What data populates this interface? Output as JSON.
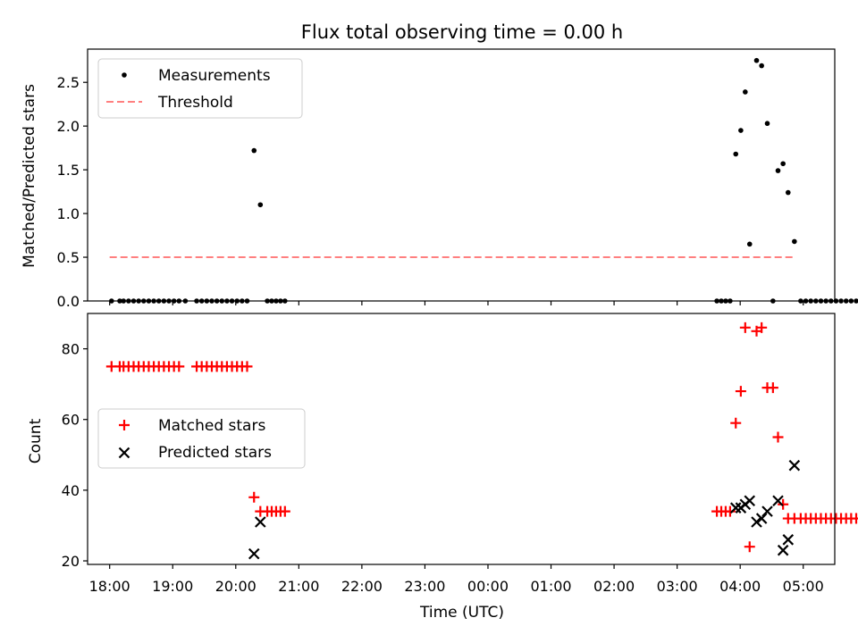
{
  "chart_data": [
    {
      "type": "scatter",
      "title": "Flux total observing time = 0.00 h",
      "xlabel": "",
      "ylabel": "Matched/Predicted stars",
      "xlim": [
        17.65,
        29.5
      ],
      "ylim": [
        0,
        2.88
      ],
      "yticks": [
        0.0,
        0.5,
        1.0,
        1.5,
        2.0,
        2.5
      ],
      "ytick_labels": [
        "0.0",
        "0.5",
        "1.0",
        "1.5",
        "2.0",
        "2.5"
      ],
      "legend": {
        "position": "top-left",
        "entries": [
          "Measurements",
          "Threshold"
        ]
      },
      "threshold": {
        "name": "Threshold",
        "value": 0.5,
        "x_range": [
          18.0,
          28.85
        ],
        "color": "#ff7f7f",
        "style": "dashed"
      },
      "series": [
        {
          "name": "Measurements",
          "color": "#000000",
          "marker": "dot",
          "x": [
            18.03,
            18.16,
            18.22,
            18.3,
            18.38,
            18.46,
            18.54,
            18.62,
            18.7,
            18.78,
            18.86,
            18.94,
            19.02,
            19.1,
            19.2,
            19.38,
            19.46,
            19.54,
            19.62,
            19.7,
            19.78,
            19.86,
            19.94,
            20.02,
            20.1,
            20.18,
            20.29,
            20.39,
            20.5,
            20.57,
            20.64,
            20.71,
            20.78,
            27.63,
            27.7,
            27.77,
            27.84,
            27.93,
            28.01,
            28.08,
            28.15,
            28.26,
            28.34,
            28.43,
            28.52,
            28.6,
            28.68,
            28.76,
            28.86,
            28.96,
            29.04,
            29.12,
            29.2,
            29.28,
            29.36,
            29.44,
            29.52,
            29.6,
            29.68,
            29.76,
            29.84
          ],
          "y": [
            0,
            0,
            0,
            0,
            0,
            0,
            0,
            0,
            0,
            0,
            0,
            0,
            0,
            0,
            0,
            0,
            0,
            0,
            0,
            0,
            0,
            0,
            0,
            0,
            0,
            0,
            1.72,
            1.1,
            0,
            0,
            0,
            0,
            0,
            0,
            0,
            0,
            0,
            1.68,
            1.95,
            2.39,
            0.65,
            2.75,
            2.69,
            2.03,
            0,
            1.49,
            1.57,
            1.24,
            0.68,
            0,
            0,
            0,
            0,
            0,
            0,
            0,
            0,
            0,
            0,
            0,
            0
          ]
        }
      ]
    },
    {
      "type": "scatter",
      "title": "",
      "xlabel": "Time (UTC)",
      "ylabel": "Count",
      "xlim": [
        17.65,
        29.5
      ],
      "ylim": [
        19,
        90
      ],
      "yticks": [
        20,
        40,
        60,
        80
      ],
      "ytick_labels": [
        "20",
        "40",
        "60",
        "80"
      ],
      "xticks": [
        18,
        19,
        20,
        21,
        22,
        23,
        24,
        25,
        26,
        27,
        28,
        29
      ],
      "xtick_labels": [
        "18:00",
        "19:00",
        "20:00",
        "21:00",
        "22:00",
        "23:00",
        "00:00",
        "01:00",
        "02:00",
        "03:00",
        "04:00",
        "05:00"
      ],
      "legend": {
        "position": "center-left",
        "entries": [
          "Matched stars",
          "Predicted stars"
        ]
      },
      "series": [
        {
          "name": "Matched stars",
          "color": "#ff0000",
          "marker": "plus",
          "x": [
            18.03,
            18.16,
            18.22,
            18.3,
            18.38,
            18.46,
            18.54,
            18.62,
            18.7,
            18.78,
            18.86,
            18.94,
            19.02,
            19.1,
            19.38,
            19.46,
            19.54,
            19.62,
            19.7,
            19.78,
            19.86,
            19.94,
            20.02,
            20.1,
            20.18,
            20.29,
            20.39,
            20.5,
            20.57,
            20.64,
            20.71,
            20.78,
            27.63,
            27.7,
            27.77,
            27.84,
            27.93,
            28.01,
            28.08,
            28.15,
            28.26,
            28.34,
            28.43,
            28.52,
            28.6,
            28.68,
            28.76,
            28.86,
            28.96,
            29.04,
            29.12,
            29.2,
            29.28,
            29.36,
            29.44,
            29.52,
            29.6,
            29.68,
            29.76,
            29.84
          ],
          "y": [
            75,
            75,
            75,
            75,
            75,
            75,
            75,
            75,
            75,
            75,
            75,
            75,
            75,
            75,
            75,
            75,
            75,
            75,
            75,
            75,
            75,
            75,
            75,
            75,
            75,
            38,
            34,
            34,
            34,
            34,
            34,
            34,
            34,
            34,
            34,
            34,
            59,
            68,
            86,
            24,
            85,
            86,
            69,
            69,
            55,
            36,
            32,
            32,
            32,
            32,
            32,
            32,
            32,
            32,
            32,
            32,
            32,
            32,
            32,
            32
          ]
        },
        {
          "name": "Predicted stars",
          "color": "#000000",
          "marker": "x",
          "x": [
            20.29,
            20.39,
            27.93,
            28.01,
            28.08,
            28.15,
            28.26,
            28.34,
            28.43,
            28.6,
            28.68,
            28.76,
            28.86
          ],
          "y": [
            22,
            31,
            35,
            35,
            36,
            37,
            31,
            32,
            34,
            37,
            23,
            26,
            47
          ]
        }
      ]
    }
  ]
}
